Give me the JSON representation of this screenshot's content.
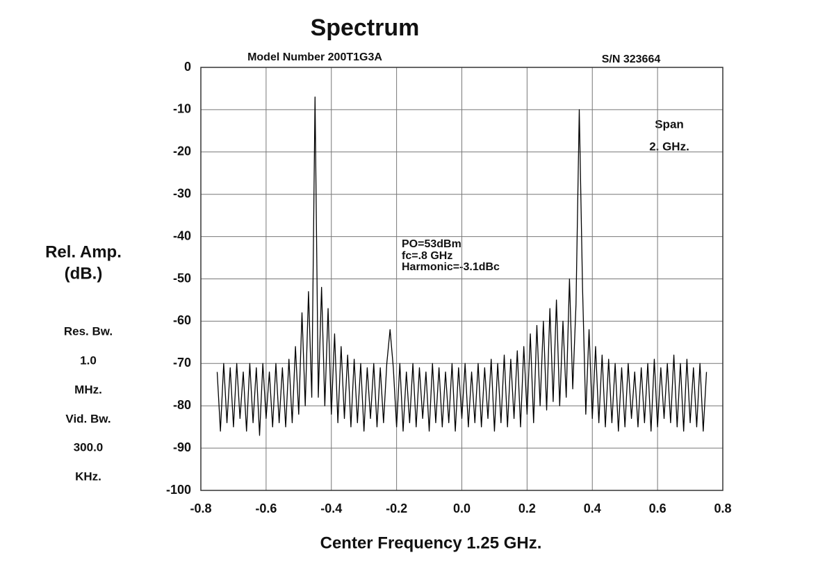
{
  "chart_data": {
    "type": "line",
    "title": "Spectrum",
    "model": "Model Number 200T1G3A",
    "serial": "S/N 323664",
    "span": [
      "Span",
      "2. GHz."
    ],
    "annotations": [
      "PO=53dBm",
      "fc=.8 GHz",
      "Harmonic=-3.1dBc"
    ],
    "ylabel": [
      "Rel. Amp.",
      "(dB.)"
    ],
    "notes": [
      "Res. Bw.",
      "1.0",
      "MHz.",
      "Vid. Bw.",
      "300.0",
      "KHz."
    ],
    "xlabel": "Center Frequency 1.25 GHz.",
    "xlim": [
      -0.8,
      0.8
    ],
    "xticks": [
      -0.8,
      -0.6,
      -0.4,
      -0.2,
      {
        "value": 0,
        "label": "0.0"
      },
      0.2,
      0.4,
      0.6,
      0.8
    ],
    "ylim": [
      -100,
      0
    ],
    "yticks": [
      0,
      -10,
      -20,
      -30,
      -40,
      -50,
      -60,
      -70,
      -80,
      -90,
      -100
    ],
    "grid": true,
    "x": [
      -0.75,
      -0.74,
      -0.73,
      -0.72,
      -0.71,
      -0.7,
      -0.69,
      -0.68,
      -0.67,
      -0.66,
      -0.65,
      -0.64,
      -0.63,
      -0.62,
      -0.61,
      -0.6,
      -0.59,
      -0.58,
      -0.57,
      -0.56,
      -0.55,
      -0.54,
      -0.53,
      -0.52,
      -0.51,
      -0.5,
      -0.49,
      -0.48,
      -0.47,
      -0.46,
      -0.45,
      -0.44,
      -0.43,
      -0.42,
      -0.41,
      -0.4,
      -0.39,
      -0.38,
      -0.37,
      -0.36,
      -0.35,
      -0.34,
      -0.33,
      -0.32,
      -0.31,
      -0.3,
      -0.29,
      -0.28,
      -0.27,
      -0.26,
      -0.25,
      -0.24,
      -0.23,
      -0.22,
      -0.21,
      -0.2,
      -0.19,
      -0.18,
      -0.17,
      -0.16,
      -0.15,
      -0.14,
      -0.13,
      -0.12,
      -0.11,
      -0.1,
      -0.09,
      -0.08,
      -0.07,
      -0.06,
      -0.05,
      -0.04,
      -0.03,
      -0.02,
      -0.01,
      0.0,
      0.01,
      0.02,
      0.03,
      0.04,
      0.05,
      0.06,
      0.07,
      0.08,
      0.09,
      0.1,
      0.11,
      0.12,
      0.13,
      0.14,
      0.15,
      0.16,
      0.17,
      0.18,
      0.19,
      0.2,
      0.21,
      0.22,
      0.23,
      0.24,
      0.25,
      0.26,
      0.27,
      0.28,
      0.29,
      0.3,
      0.31,
      0.32,
      0.33,
      0.34,
      0.35,
      0.36,
      0.37,
      0.38,
      0.39,
      0.4,
      0.41,
      0.42,
      0.43,
      0.44,
      0.45,
      0.46,
      0.47,
      0.48,
      0.49,
      0.5,
      0.51,
      0.52,
      0.53,
      0.54,
      0.55,
      0.56,
      0.57,
      0.58,
      0.59,
      0.6,
      0.61,
      0.62,
      0.63,
      0.64,
      0.65,
      0.66,
      0.67,
      0.68,
      0.69,
      0.7,
      0.71,
      0.72,
      0.73,
      0.74,
      0.75
    ],
    "series": [
      {
        "color": "#000000",
        "values": [
          -72,
          -86,
          -70,
          -84,
          -71,
          -85,
          -70,
          -83,
          -72,
          -86,
          -70,
          -84,
          -71,
          -87,
          -70,
          -83,
          -72,
          -85,
          -70,
          -84,
          -71,
          -85,
          -69,
          -84,
          -66,
          -82,
          -58,
          -80,
          -53,
          -78,
          -7,
          -78,
          -52,
          -80,
          -57,
          -82,
          -63,
          -84,
          -66,
          -83,
          -68,
          -85,
          -69,
          -84,
          -70,
          -86,
          -71,
          -83,
          -70,
          -85,
          -71,
          -84,
          -70,
          -62,
          -71,
          -85,
          -70,
          -86,
          -72,
          -84,
          -70,
          -85,
          -71,
          -83,
          -72,
          -86,
          -70,
          -84,
          -71,
          -85,
          -72,
          -84,
          -70,
          -86,
          -71,
          -83,
          -70,
          -85,
          -72,
          -84,
          -70,
          -85,
          -71,
          -83,
          -69,
          -86,
          -70,
          -84,
          -68,
          -85,
          -69,
          -83,
          -67,
          -85,
          -66,
          -82,
          -63,
          -84,
          -61,
          -80,
          -60,
          -81,
          -57,
          -79,
          -55,
          -80,
          -60,
          -78,
          -50,
          -76,
          -56,
          -10,
          -52,
          -82,
          -62,
          -83,
          -66,
          -84,
          -68,
          -85,
          -69,
          -84,
          -70,
          -86,
          -71,
          -85,
          -70,
          -83,
          -72,
          -85,
          -71,
          -84,
          -70,
          -86,
          -69,
          -85,
          -71,
          -83,
          -70,
          -84,
          -68,
          -85,
          -70,
          -86,
          -69,
          -84,
          -71,
          -85,
          -70,
          -86,
          -72
        ]
      }
    ]
  }
}
